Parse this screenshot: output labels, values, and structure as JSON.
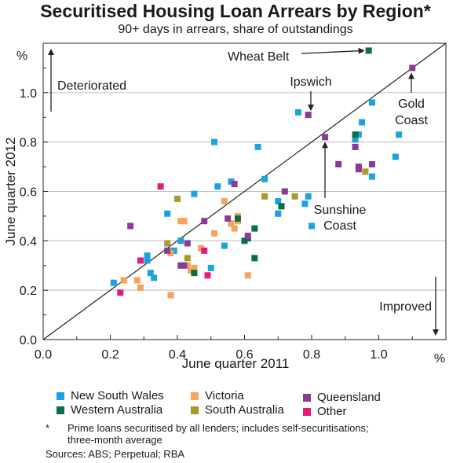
{
  "chart_data": {
    "type": "scatter",
    "title": "Securitised Housing Loan Arrears by Region*",
    "subtitle": "90+ days in arrears, share of outstandings",
    "xlabel": "June quarter 2011",
    "ylabel": "June quarter 2012",
    "x_unit": "%",
    "y_unit": "%",
    "xlim": [
      0,
      1.2
    ],
    "ylim": [
      0,
      1.2
    ],
    "x_ticks": [
      "0.0",
      "0.2",
      "0.4",
      "0.6",
      "0.8",
      "1.0"
    ],
    "y_ticks": [
      "0.0",
      "0.2",
      "0.4",
      "0.6",
      "0.8",
      "1.0"
    ],
    "grid": "horizontal",
    "reference_line": "45-degree line",
    "legend_position": "bottom",
    "series": [
      {
        "name": "New South Wales",
        "color": "#1aa3e0",
        "points": [
          [
            0.21,
            0.23
          ],
          [
            0.31,
            0.32
          ],
          [
            0.31,
            0.34
          ],
          [
            0.32,
            0.27
          ],
          [
            0.33,
            0.25
          ],
          [
            0.37,
            0.51
          ],
          [
            0.39,
            0.36
          ],
          [
            0.41,
            0.4
          ],
          [
            0.45,
            0.59
          ],
          [
            0.5,
            0.29
          ],
          [
            0.51,
            0.8
          ],
          [
            0.52,
            0.62
          ],
          [
            0.54,
            0.38
          ],
          [
            0.56,
            0.64
          ],
          [
            0.64,
            0.78
          ],
          [
            0.66,
            0.65
          ],
          [
            0.7,
            0.51
          ],
          [
            0.7,
            0.56
          ],
          [
            0.76,
            0.92
          ],
          [
            0.78,
            0.55
          ],
          [
            0.79,
            0.58
          ],
          [
            0.8,
            0.46
          ],
          [
            0.93,
            0.81
          ],
          [
            0.94,
            0.83
          ],
          [
            0.95,
            0.88
          ],
          [
            0.98,
            0.96
          ],
          [
            0.98,
            0.66
          ],
          [
            1.05,
            0.74
          ],
          [
            1.06,
            0.83
          ]
        ]
      },
      {
        "name": "Victoria",
        "color": "#f7a35c",
        "points": [
          [
            0.24,
            0.24
          ],
          [
            0.28,
            0.24
          ],
          [
            0.29,
            0.21
          ],
          [
            0.38,
            0.18
          ],
          [
            0.38,
            0.35
          ],
          [
            0.41,
            0.48
          ],
          [
            0.42,
            0.48
          ],
          [
            0.43,
            0.3
          ],
          [
            0.44,
            0.28
          ],
          [
            0.45,
            0.29
          ],
          [
            0.47,
            0.37
          ],
          [
            0.51,
            0.43
          ],
          [
            0.54,
            0.56
          ],
          [
            0.56,
            0.47
          ],
          [
            0.57,
            0.45
          ],
          [
            0.58,
            0.48
          ],
          [
            0.58,
            0.5
          ],
          [
            0.61,
            0.26
          ]
        ]
      },
      {
        "name": "Western Australia",
        "color": "#0a6e47",
        "points": [
          [
            0.45,
            0.27
          ],
          [
            0.58,
            0.49
          ],
          [
            0.6,
            0.4
          ],
          [
            0.61,
            0.41
          ],
          [
            0.63,
            0.33
          ],
          [
            0.63,
            0.45
          ],
          [
            0.71,
            0.54
          ],
          [
            0.93,
            0.83
          ],
          [
            0.97,
            1.17
          ]
        ]
      },
      {
        "name": "South Australia",
        "color": "#a89a2e",
        "points": [
          [
            0.37,
            0.39
          ],
          [
            0.4,
            0.57
          ],
          [
            0.43,
            0.33
          ],
          [
            0.66,
            0.58
          ],
          [
            0.75,
            0.58
          ],
          [
            0.96,
            0.68
          ]
        ]
      },
      {
        "name": "Queensland",
        "color": "#8b3a96",
        "points": [
          [
            0.26,
            0.46
          ],
          [
            0.37,
            0.36
          ],
          [
            0.41,
            0.3
          ],
          [
            0.42,
            0.3
          ],
          [
            0.43,
            0.39
          ],
          [
            0.48,
            0.48
          ],
          [
            0.55,
            0.49
          ],
          [
            0.57,
            0.63
          ],
          [
            0.61,
            0.42
          ],
          [
            0.72,
            0.6
          ],
          [
            0.79,
            0.91
          ],
          [
            0.84,
            0.82
          ],
          [
            0.88,
            0.71
          ],
          [
            0.93,
            0.78
          ],
          [
            0.94,
            0.7
          ],
          [
            0.94,
            0.69
          ],
          [
            0.98,
            0.71
          ],
          [
            1.1,
            1.1
          ]
        ]
      },
      {
        "name": "Other",
        "color": "#e8197d",
        "points": [
          [
            0.23,
            0.19
          ],
          [
            0.29,
            0.32
          ],
          [
            0.35,
            0.62
          ],
          [
            0.48,
            0.36
          ],
          [
            0.49,
            0.26
          ]
        ]
      }
    ],
    "annotations": [
      {
        "text": "Wheat Belt",
        "x": 0.97,
        "y": 1.17
      },
      {
        "text": "Ipswich",
        "x": 0.79,
        "y": 0.91
      },
      {
        "text": "Gold Coast",
        "x": 1.1,
        "y": 1.1
      },
      {
        "text": "Sunshine Coast",
        "x": 0.84,
        "y": 0.82
      },
      {
        "text": "Deteriorated"
      },
      {
        "text": "Improved"
      }
    ]
  },
  "legend": {
    "nsw": "New South Wales",
    "vic": "Victoria",
    "qld": "Queensland",
    "wa": "Western Australia",
    "sa": "South Australia",
    "other": "Other"
  },
  "footnote": {
    "star": "*",
    "line1": "Prime loans securitised by all lenders; includes self-securitisations;",
    "line2": "three-month average"
  },
  "sources": "Sources: ABS; Perpetual; RBA"
}
